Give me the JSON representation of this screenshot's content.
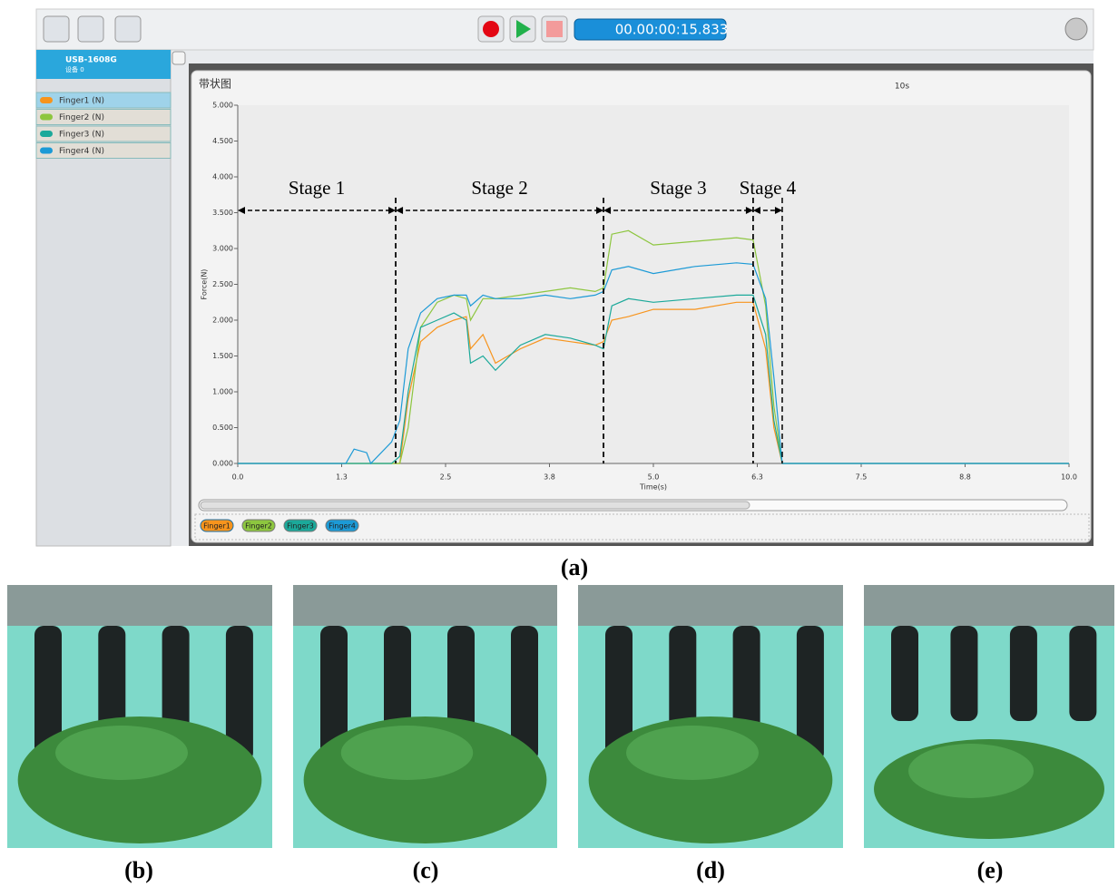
{
  "ui": {
    "timer": "00.00:00:15.833",
    "device": "USB-1608G",
    "device_sub": "设备 0",
    "channels": [
      "Finger1 (N)",
      "Finger2 (N)",
      "Finger3 (N)",
      "Finger4 (N)"
    ],
    "chart_window_title": "带状图",
    "span": "10s"
  },
  "chart_data": {
    "type": "line",
    "x_label": "Time(s)",
    "y_label": "Force(N)",
    "x": [
      0,
      1.3,
      1.4,
      1.55,
      1.6,
      1.85,
      1.95,
      2.05,
      2.2,
      2.4,
      2.6,
      2.75,
      2.8,
      2.95,
      3.1,
      3.4,
      3.7,
      4.0,
      4.3,
      4.4,
      4.5,
      4.7,
      5.0,
      5.5,
      6.0,
      6.2,
      6.35,
      6.45,
      6.55,
      7.0,
      10.0
    ],
    "series": [
      {
        "name": "Finger1",
        "color": "#f7941d",
        "values": [
          0,
          0,
          0,
          0,
          0,
          0,
          0,
          0.9,
          1.7,
          1.9,
          2.0,
          2.05,
          1.6,
          1.8,
          1.4,
          1.6,
          1.75,
          1.7,
          1.65,
          1.7,
          2.0,
          2.05,
          2.15,
          2.15,
          2.25,
          2.25,
          1.6,
          0.5,
          0,
          0,
          0
        ]
      },
      {
        "name": "Finger2",
        "color": "#8dc63f",
        "values": [
          0,
          0,
          0,
          0,
          0,
          0,
          0,
          0.5,
          1.9,
          2.25,
          2.35,
          2.3,
          2.0,
          2.3,
          2.3,
          2.35,
          2.4,
          2.45,
          2.4,
          2.45,
          3.2,
          3.25,
          3.05,
          3.1,
          3.15,
          3.12,
          2.2,
          0.8,
          0,
          0,
          0
        ]
      },
      {
        "name": "Finger3",
        "color": "#1ba99a",
        "values": [
          0,
          0,
          0,
          0,
          0,
          0,
          0.1,
          1.0,
          1.9,
          2.0,
          2.1,
          2.0,
          1.4,
          1.5,
          1.3,
          1.65,
          1.8,
          1.75,
          1.65,
          1.6,
          2.2,
          2.3,
          2.25,
          2.3,
          2.35,
          2.35,
          1.8,
          0.6,
          0,
          0,
          0
        ]
      },
      {
        "name": "Finger4",
        "color": "#1c9ad6",
        "values": [
          0,
          0,
          0.2,
          0.15,
          0,
          0.3,
          0.6,
          1.6,
          2.1,
          2.3,
          2.35,
          2.35,
          2.2,
          2.35,
          2.3,
          2.3,
          2.35,
          2.3,
          2.35,
          2.4,
          2.7,
          2.75,
          2.65,
          2.75,
          2.8,
          2.78,
          2.3,
          1.2,
          0,
          0,
          0
        ]
      }
    ],
    "xlim": [
      0,
      10
    ],
    "xticks": [
      {
        "value": 0,
        "label": "0.0"
      },
      {
        "value": 1.25,
        "label": "1.3"
      },
      {
        "value": 2.5,
        "label": "2.5"
      },
      {
        "value": 3.75,
        "label": "3.8"
      },
      {
        "value": 5,
        "label": "5.0"
      },
      {
        "value": 6.25,
        "label": "6.3"
      },
      {
        "value": 7.5,
        "label": "7.5"
      },
      {
        "value": 8.75,
        "label": "8.8"
      },
      {
        "value": 10,
        "label": "10.0"
      }
    ],
    "ylim": [
      0,
      5
    ],
    "yticks": [
      {
        "value": 0,
        "label": "0.000"
      },
      {
        "value": 0.5,
        "label": "0.500"
      },
      {
        "value": 1,
        "label": "1.000"
      },
      {
        "value": 1.5,
        "label": "1.500"
      },
      {
        "value": 2,
        "label": "2.000"
      },
      {
        "value": 2.5,
        "label": "2.500"
      },
      {
        "value": 3,
        "label": "3.000"
      },
      {
        "value": 3.5,
        "label": "3.500"
      },
      {
        "value": 4,
        "label": "4.000"
      },
      {
        "value": 4.5,
        "label": "4.500"
      },
      {
        "value": 5,
        "label": "5.000"
      }
    ],
    "stages": [
      {
        "label": "Stage 1",
        "start": 0,
        "end": 1.9
      },
      {
        "label": "Stage 2",
        "start": 1.9,
        "end": 4.4
      },
      {
        "label": "Stage 3",
        "start": 4.4,
        "end": 6.2
      },
      {
        "label": "Stage 4",
        "start": 6.2,
        "end": 6.55
      }
    ]
  },
  "figure_labels": [
    "(a)",
    "(b)",
    "(c)",
    "(d)",
    "(e)"
  ]
}
